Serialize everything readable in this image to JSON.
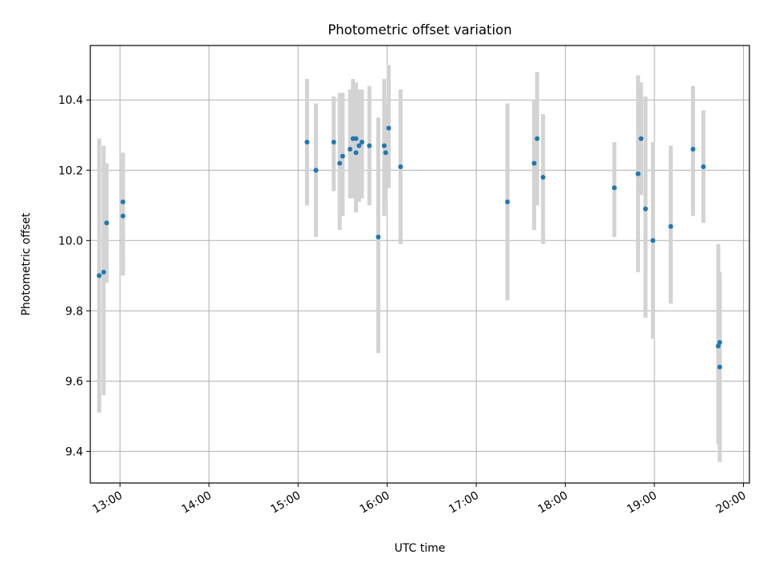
{
  "chart_data": {
    "type": "scatter",
    "title": "Photometric offset variation",
    "xlabel": "UTC time",
    "ylabel": "Photometric offset",
    "x_unit": "UTC time (HH:MM)",
    "xlim": [
      "12:40",
      "20:04"
    ],
    "ylim": [
      9.31,
      10.555
    ],
    "xticks": [
      "13:00",
      "14:00",
      "15:00",
      "16:00",
      "17:00",
      "18:00",
      "19:00",
      "20:00"
    ],
    "yticks": [
      "9.4",
      "9.6",
      "9.8",
      "10.0",
      "10.2",
      "10.4"
    ],
    "grid": true,
    "legend": "none",
    "marker_color": "#1f77b4",
    "errorbar_color": "#d3d3d3",
    "points": [
      {
        "x": "12:46",
        "y": 9.9,
        "err_low": 9.51,
        "err_high": 10.29
      },
      {
        "x": "12:49",
        "y": 9.91,
        "err_low": 9.56,
        "err_high": 10.27
      },
      {
        "x": "12:51",
        "y": 10.05,
        "err_low": 9.88,
        "err_high": 10.22
      },
      {
        "x": "13:02",
        "y": 10.07,
        "err_low": 9.9,
        "err_high": 10.25
      },
      {
        "x": "13:02",
        "y": 10.11,
        "err_low": 9.97,
        "err_high": 10.25
      },
      {
        "x": "15:06",
        "y": 10.28,
        "err_low": 10.1,
        "err_high": 10.46
      },
      {
        "x": "15:12",
        "y": 10.2,
        "err_low": 10.01,
        "err_high": 10.39
      },
      {
        "x": "15:24",
        "y": 10.28,
        "err_low": 10.14,
        "err_high": 10.41
      },
      {
        "x": "15:28",
        "y": 10.22,
        "err_low": 10.03,
        "err_high": 10.42
      },
      {
        "x": "15:30",
        "y": 10.24,
        "err_low": 10.07,
        "err_high": 10.42
      },
      {
        "x": "15:35",
        "y": 10.26,
        "err_low": 10.12,
        "err_high": 10.43
      },
      {
        "x": "15:37",
        "y": 10.29,
        "err_low": 10.12,
        "err_high": 10.46
      },
      {
        "x": "15:39",
        "y": 10.29,
        "err_low": 10.13,
        "err_high": 10.45
      },
      {
        "x": "15:39",
        "y": 10.25,
        "err_low": 10.08,
        "err_high": 10.43
      },
      {
        "x": "15:41",
        "y": 10.27,
        "err_low": 10.11,
        "err_high": 10.43
      },
      {
        "x": "15:43",
        "y": 10.28,
        "err_low": 10.12,
        "err_high": 10.43
      },
      {
        "x": "15:48",
        "y": 10.27,
        "err_low": 10.1,
        "err_high": 10.44
      },
      {
        "x": "15:54",
        "y": 10.01,
        "err_low": 9.68,
        "err_high": 10.35
      },
      {
        "x": "15:58",
        "y": 10.27,
        "err_low": 10.07,
        "err_high": 10.46
      },
      {
        "x": "15:59",
        "y": 10.25,
        "err_low": 10.11,
        "err_high": 10.39
      },
      {
        "x": "16:01",
        "y": 10.32,
        "err_low": 10.15,
        "err_high": 10.5
      },
      {
        "x": "16:09",
        "y": 10.21,
        "err_low": 9.99,
        "err_high": 10.43
      },
      {
        "x": "17:21",
        "y": 10.11,
        "err_low": 9.83,
        "err_high": 10.39
      },
      {
        "x": "17:39",
        "y": 10.22,
        "err_low": 10.03,
        "err_high": 10.4
      },
      {
        "x": "17:41",
        "y": 10.29,
        "err_low": 10.1,
        "err_high": 10.48
      },
      {
        "x": "17:45",
        "y": 10.18,
        "err_low": 9.99,
        "err_high": 10.36
      },
      {
        "x": "18:33",
        "y": 10.15,
        "err_low": 10.01,
        "err_high": 10.28
      },
      {
        "x": "18:49",
        "y": 10.19,
        "err_low": 9.91,
        "err_high": 10.47
      },
      {
        "x": "18:51",
        "y": 10.29,
        "err_low": 10.13,
        "err_high": 10.45
      },
      {
        "x": "18:54",
        "y": 10.09,
        "err_low": 9.78,
        "err_high": 10.41
      },
      {
        "x": "18:59",
        "y": 10.0,
        "err_low": 9.72,
        "err_high": 10.28
      },
      {
        "x": "19:11",
        "y": 10.04,
        "err_low": 9.82,
        "err_high": 10.27
      },
      {
        "x": "19:26",
        "y": 10.26,
        "err_low": 10.07,
        "err_high": 10.44
      },
      {
        "x": "19:33",
        "y": 10.21,
        "err_low": 10.05,
        "err_high": 10.37
      },
      {
        "x": "19:43",
        "y": 9.7,
        "err_low": 9.42,
        "err_high": 9.99
      },
      {
        "x": "19:44",
        "y": 9.71,
        "err_low": 9.41,
        "err_high": 9.91
      },
      {
        "x": "19:44",
        "y": 9.64,
        "err_low": 9.37,
        "err_high": 9.9
      }
    ]
  }
}
